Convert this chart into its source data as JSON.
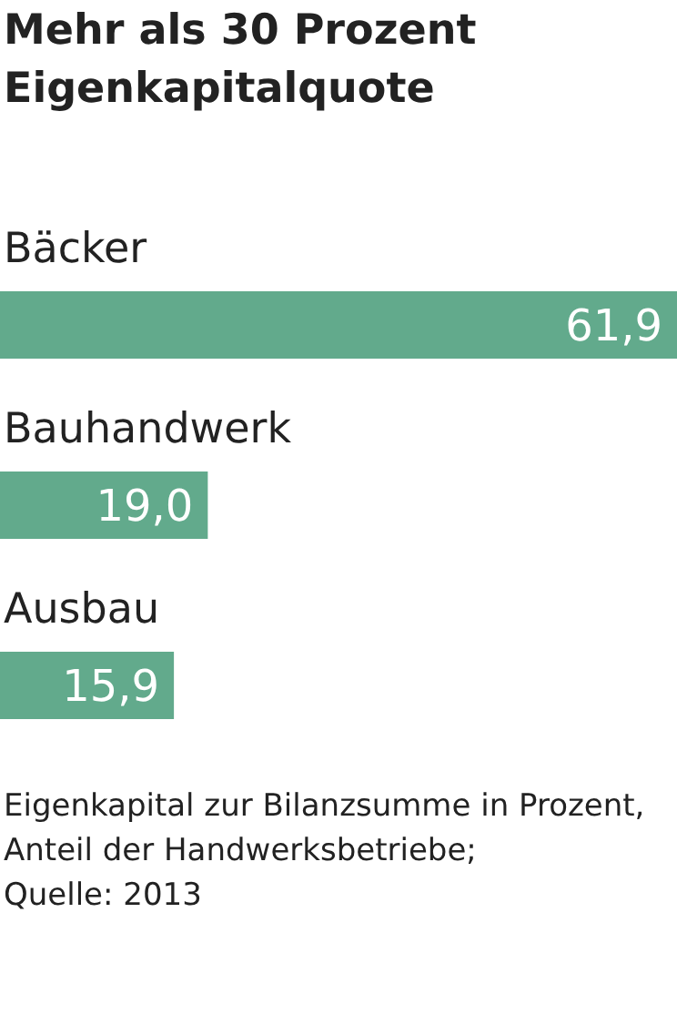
{
  "chart_data": {
    "type": "bar",
    "orientation": "horizontal",
    "title": "Mehr als 30 Prozent Eigenkapitalquote",
    "categories": [
      "Bäcker",
      "Bauhandwerk",
      "Ausbau"
    ],
    "values": [
      61.9,
      19.0,
      15.9
    ],
    "value_labels": [
      "61,9",
      "19,0",
      "15,9"
    ],
    "color": "#62aa8c",
    "annotations": [
      "Eigenkapital zur Bilanzsumme in Prozent, Anteil der Handwerksbetriebe;",
      "Quelle: 2013"
    ]
  }
}
